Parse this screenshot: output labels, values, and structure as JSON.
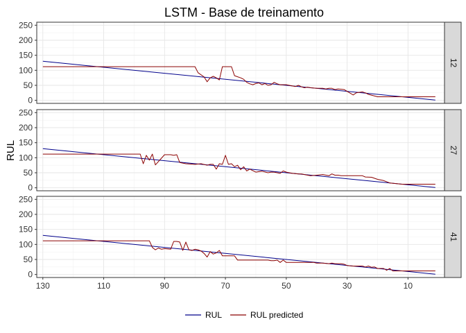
{
  "chart_data": {
    "type": "line",
    "title": "LSTM - Base de treinamento",
    "ylabel": "RUL",
    "xlabel": "",
    "x_reversed": true,
    "xlim": [
      132,
      -2
    ],
    "ylim": [
      -10,
      260
    ],
    "x_ticks": [
      "130",
      "110",
      "90",
      "70",
      "50",
      "30",
      "10"
    ],
    "y_ticks": [
      "0",
      "50",
      "100",
      "150",
      "200",
      "250"
    ],
    "grid": true,
    "legend_position": "bottom",
    "series_styles": [
      {
        "name": "RUL",
        "color": "#00008B"
      },
      {
        "name": "RUL predicted",
        "color": "#8B0000"
      }
    ],
    "panels": [
      {
        "label": "12",
        "series": [
          {
            "name": "RUL",
            "x": [
              130,
              1
            ],
            "values": [
              130,
              1
            ]
          },
          {
            "name": "RUL predicted",
            "x": [
              130,
              80,
              79,
              77,
              76,
              75,
              74,
              73,
              72,
              71,
              70,
              68,
              67,
              65,
              64,
              63,
              62,
              61,
              60,
              59,
              58,
              57,
              56,
              55,
              54,
              53,
              52,
              50,
              48,
              47,
              46,
              45,
              44,
              43,
              42,
              40,
              38,
              37,
              36,
              35,
              34,
              33,
              32,
              31,
              30,
              28,
              27,
              25,
              24,
              23,
              20,
              17,
              15,
              12,
              10,
              1
            ],
            "values": [
              112,
              112,
              92,
              78,
              62,
              75,
              80,
              75,
              68,
              112,
              112,
              112,
              82,
              75,
              70,
              60,
              55,
              52,
              56,
              58,
              52,
              56,
              50,
              52,
              60,
              55,
              52,
              52,
              48,
              46,
              50,
              45,
              42,
              44,
              42,
              40,
              40,
              38,
              40,
              40,
              36,
              38,
              37,
              36,
              30,
              18,
              25,
              28,
              25,
              20,
              12,
              12,
              12,
              12,
              12,
              12
            ]
          }
        ]
      },
      {
        "label": "27",
        "series": [
          {
            "name": "RUL",
            "x": [
              130,
              1
            ],
            "values": [
              130,
              1
            ]
          },
          {
            "name": "RUL predicted",
            "x": [
              130,
              98,
              97,
              96,
              95,
              94,
              93,
              90,
              88,
              87,
              86,
              85,
              83,
              80,
              78,
              76,
              75,
              74,
              73,
              72,
              71,
              70,
              69,
              68,
              67,
              66,
              65,
              64,
              63,
              62,
              60,
              58,
              56,
              55,
              54,
              53,
              52,
              51,
              50,
              48,
              46,
              45,
              44,
              43,
              42,
              40,
              38,
              36,
              35,
              34,
              33,
              32,
              30,
              28,
              26,
              25,
              24,
              22,
              20,
              18,
              16,
              14,
              12,
              10,
              1
            ],
            "values": [
              112,
              112,
              80,
              108,
              92,
              112,
              76,
              110,
              110,
              108,
              110,
              84,
              80,
              78,
              80,
              75,
              78,
              78,
              62,
              80,
              78,
              108,
              78,
              80,
              70,
              75,
              60,
              70,
              56,
              62,
              52,
              55,
              50,
              52,
              52,
              50,
              48,
              56,
              52,
              48,
              46,
              46,
              44,
              42,
              40,
              42,
              44,
              40,
              46,
              42,
              42,
              40,
              40,
              40,
              40,
              40,
              36,
              35,
              28,
              24,
              16,
              14,
              12,
              12,
              12
            ]
          }
        ]
      },
      {
        "label": "41",
        "series": [
          {
            "name": "RUL",
            "x": [
              130,
              1
            ],
            "values": [
              130,
              1
            ]
          },
          {
            "name": "RUL predicted",
            "x": [
              130,
              95,
              94,
              93,
              92,
              91,
              90,
              88,
              87,
              86,
              85,
              84,
              83,
              82,
              81,
              80,
              79,
              78,
              77,
              76,
              75,
              74,
              73,
              72,
              71,
              70,
              67,
              66,
              60,
              58,
              56,
              55,
              54,
              53,
              52,
              51,
              50,
              48,
              45,
              44,
              43,
              42,
              41,
              40,
              38,
              36,
              35,
              34,
              33,
              32,
              31,
              30,
              28,
              26,
              25,
              24,
              23,
              22,
              21,
              20,
              18,
              17,
              16,
              15,
              12,
              10,
              1
            ],
            "values": [
              112,
              112,
              90,
              82,
              88,
              84,
              86,
              84,
              110,
              110,
              108,
              80,
              108,
              82,
              80,
              84,
              82,
              78,
              70,
              58,
              76,
              68,
              72,
              80,
              62,
              62,
              62,
              48,
              48,
              48,
              48,
              46,
              46,
              48,
              40,
              48,
              40,
              40,
              40,
              40,
              40,
              40,
              40,
              38,
              38,
              36,
              38,
              36,
              36,
              36,
              34,
              30,
              28,
              28,
              28,
              25,
              28,
              24,
              25,
              20,
              20,
              14,
              20,
              12,
              12,
              12,
              12
            ]
          }
        ]
      }
    ]
  }
}
